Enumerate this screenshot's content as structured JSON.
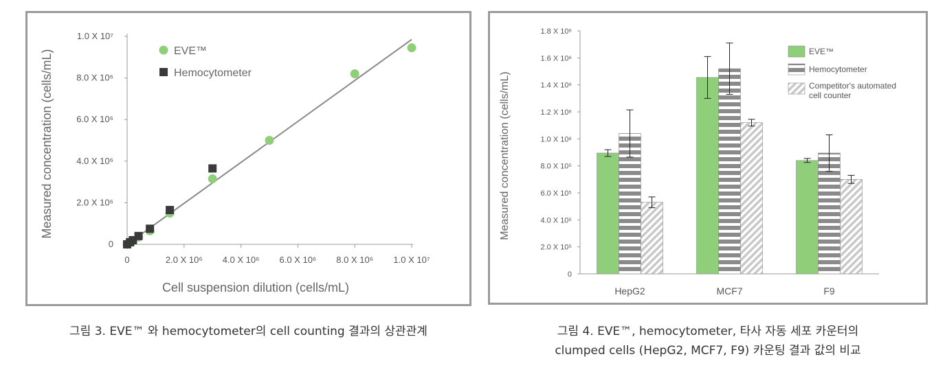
{
  "colors": {
    "eve_green": "#8fcf7a",
    "hemocytometer_gray": "#8a8a8a",
    "square_dark": "#3a3a3a",
    "line_gray": "#888888",
    "competitor_hatch": "#c8c8c8"
  },
  "chart_data": [
    {
      "type": "scatter",
      "xlabel": "Cell suspension dilution (cells/mL)",
      "ylabel": "Measured concentration (cells/mL)",
      "xlim": [
        0,
        10000000
      ],
      "ylim": [
        0,
        10000000
      ],
      "x_ticks": [
        {
          "value": 0,
          "label": "0"
        },
        {
          "value": 2000000,
          "label": "2.0 X 10⁶"
        },
        {
          "value": 4000000,
          "label": "4.0 X 10⁶"
        },
        {
          "value": 6000000,
          "label": "6.0 X 10⁶"
        },
        {
          "value": 8000000,
          "label": "8.0 X 10⁶"
        },
        {
          "value": 10000000,
          "label": "1.0 X 10⁷"
        }
      ],
      "y_ticks": [
        {
          "value": 0,
          "label": "0"
        },
        {
          "value": 2000000,
          "label": "2.0 X 10⁶"
        },
        {
          "value": 4000000,
          "label": "4.0 X 10⁶"
        },
        {
          "value": 6000000,
          "label": "6.0 X 10⁶"
        },
        {
          "value": 8000000,
          "label": "8.0 X 10⁶"
        },
        {
          "value": 10000000,
          "label": "1.0 X 10⁷"
        }
      ],
      "legend_placement": "top-left",
      "grid": false,
      "trendline": {
        "x": [
          0,
          10000000
        ],
        "y": [
          0,
          9850000
        ]
      },
      "series": [
        {
          "name": "EVE™",
          "marker": "circle",
          "x": [
            0,
            100000,
            200000,
            400000,
            800000,
            1500000,
            3000000,
            5000000,
            8000000,
            10000000
          ],
          "y": [
            0,
            100000,
            150000,
            350000,
            650000,
            1500000,
            3150000,
            5000000,
            8200000,
            9450000
          ]
        },
        {
          "name": "Hemocytometer",
          "marker": "square",
          "x": [
            0,
            100000,
            200000,
            400000,
            800000,
            1500000,
            3000000
          ],
          "y": [
            0,
            100000,
            200000,
            400000,
            750000,
            1650000,
            3650000
          ]
        }
      ]
    },
    {
      "type": "bar",
      "ylabel": "Measured concentration (cells/mL)",
      "ylim": [
        0,
        1800000
      ],
      "y_ticks": [
        {
          "value": 0,
          "label": "0"
        },
        {
          "value": 200000,
          "label": "2.0 X 10⁵"
        },
        {
          "value": 400000,
          "label": "4.0 X 10⁵"
        },
        {
          "value": 600000,
          "label": "6.0 X 10⁵"
        },
        {
          "value": 800000,
          "label": "8.0 X 10⁵"
        },
        {
          "value": 1000000,
          "label": "1.0 X 10⁶"
        },
        {
          "value": 1200000,
          "label": "1.2 X 10⁶"
        },
        {
          "value": 1400000,
          "label": "1.4 X 10⁶"
        },
        {
          "value": 1600000,
          "label": "1.6 X 10⁶"
        },
        {
          "value": 1800000,
          "label": "1.8 X 10⁶"
        }
      ],
      "categories": [
        "HepG2",
        "MCF7",
        "F9"
      ],
      "legend_placement": "top-right",
      "grid": false,
      "series": [
        {
          "name": "EVE™",
          "pattern": "solid",
          "values": [
            895000,
            1455000,
            840000
          ],
          "errors": [
            25000,
            155000,
            15000
          ]
        },
        {
          "name": "Hemocytometer",
          "pattern": "horizontal-stripes",
          "values": [
            1040000,
            1520000,
            895000
          ],
          "errors": [
            175000,
            190000,
            135000
          ]
        },
        {
          "name_lines": [
            "Competitor's automated",
            "cell counter"
          ],
          "pattern": "diagonal-hatch",
          "values": [
            530000,
            1120000,
            700000
          ],
          "errors": [
            40000,
            25000,
            30000
          ]
        }
      ]
    }
  ],
  "captions": {
    "left": "그림 3. EVE™ 와 hemocytometer의 cell counting 결과의 상관관계",
    "right_line1": "그림 4. EVE™, hemocytometer, 타사 자동 세포 카운터의",
    "right_line2": "clumped cells (HepG2, MCF7, F9) 카운팅 결과 값의 비교"
  }
}
